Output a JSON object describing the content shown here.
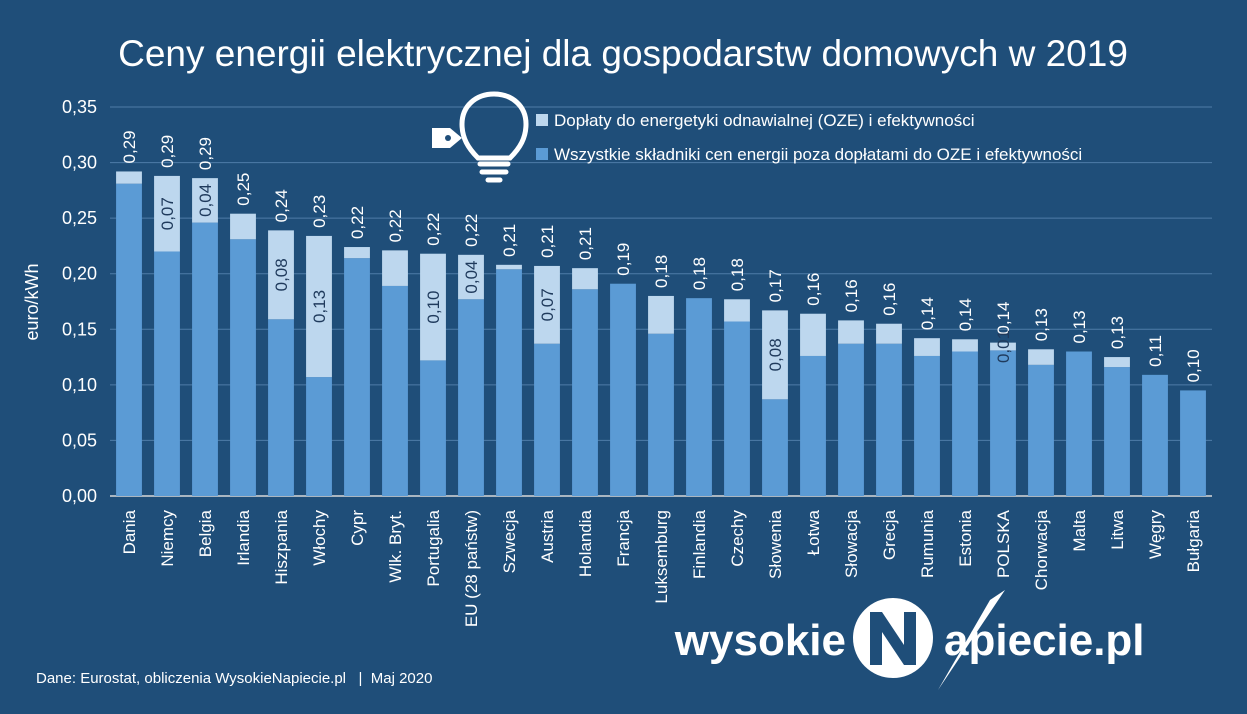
{
  "chart_data": {
    "type": "bar",
    "stacked": true,
    "title": "Ceny energii elektrycznej dla gospodarstw domowych w 2019",
    "ylabel": "euro/kWh",
    "xlabel": "",
    "ylim": [
      0,
      0.35
    ],
    "yticks": [
      0.0,
      0.05,
      0.1,
      0.15,
      0.2,
      0.25,
      0.3,
      0.35
    ],
    "ytick_labels": [
      "0,00",
      "0,05",
      "0,10",
      "0,15",
      "0,20",
      "0,25",
      "0,30",
      "0,35"
    ],
    "grid": true,
    "legend_position": "top-right",
    "categories": [
      "Dania",
      "Niemcy",
      "Belgia",
      "Irlandia",
      "Hiszpania",
      "Włochy",
      "Cypr",
      "Wlk. Bryt.",
      "Portugalia",
      "EU (28 państw)",
      "Szwecja",
      "Austria",
      "Holandia",
      "Francja",
      "Luksemburg",
      "Finlandia",
      "Czechy",
      "Słowenia",
      "Łotwa",
      "Słowacja",
      "Grecja",
      "Rumunia",
      "Estonia",
      "POLSKA",
      "Chorwacja",
      "Malta",
      "Litwa",
      "Węgry",
      "Bułgaria"
    ],
    "series": [
      {
        "name": "Wszystkie składniki cen energii poza dopłatami do OZE i efektywności",
        "color": "#5b9bd5",
        "values": [
          0.281,
          0.22,
          0.246,
          0.231,
          0.159,
          0.107,
          0.214,
          0.189,
          0.122,
          0.177,
          0.204,
          0.137,
          0.186,
          0.191,
          0.146,
          0.178,
          0.157,
          0.087,
          0.126,
          0.137,
          0.137,
          0.126,
          0.13,
          0.131,
          0.118,
          0.13,
          0.116,
          0.109,
          0.095
        ]
      },
      {
        "name": "Dopłaty do energetyki odnawialnej (OZE) i efektywności",
        "color": "#bdd7ee",
        "values": [
          0.011,
          0.068,
          0.04,
          0.023,
          0.08,
          0.127,
          0.01,
          0.032,
          0.096,
          0.04,
          0.004,
          0.07,
          0.019,
          0.0,
          0.034,
          0.0,
          0.02,
          0.08,
          0.038,
          0.021,
          0.018,
          0.016,
          0.011,
          0.007,
          0.014,
          0.0,
          0.009,
          0.0,
          0.0
        ]
      }
    ],
    "total_labels": [
      "0,29",
      "0,29",
      "0,29",
      "0,25",
      "0,24",
      "0,23",
      "0,22",
      "0,22",
      "0,22",
      "0,22",
      "0,21",
      "0,21",
      "0,21",
      "0,19",
      "0,18",
      "0,18",
      "0,18",
      "0,17",
      "0,16",
      "0,16",
      "0,16",
      "0,14",
      "0,14",
      "0,14",
      "0,13",
      "0,13",
      "0,13",
      "0,11",
      "0,10"
    ],
    "oze_labels": [
      "",
      "0,07",
      "0,04",
      "",
      "0,08",
      "0,13",
      "",
      "",
      "0,10",
      "0,04",
      "",
      "0,07",
      "",
      "",
      "",
      "",
      "",
      "0,08",
      "",
      "",
      "",
      "",
      "",
      "0,01",
      "",
      "",
      "",
      "",
      ""
    ]
  },
  "legend": {
    "oze": "Dopłaty do energetyki odnawialnej (OZE) i efektywności",
    "other": "Wszystkie składniki cen energii poza dopłatami do OZE i efektywności"
  },
  "icon": "lightbulb-icon",
  "logo": {
    "text_left": "wysokie",
    "text_right": "apiecie.pl"
  },
  "footer": "Dane: Eurostat, obliczenia WysokieNapiecie.pl   |  Maj 2020",
  "colors": {
    "background": "#1f4e79",
    "base": "#5b9bd5",
    "oze": "#bdd7ee",
    "text": "#ffffff"
  }
}
